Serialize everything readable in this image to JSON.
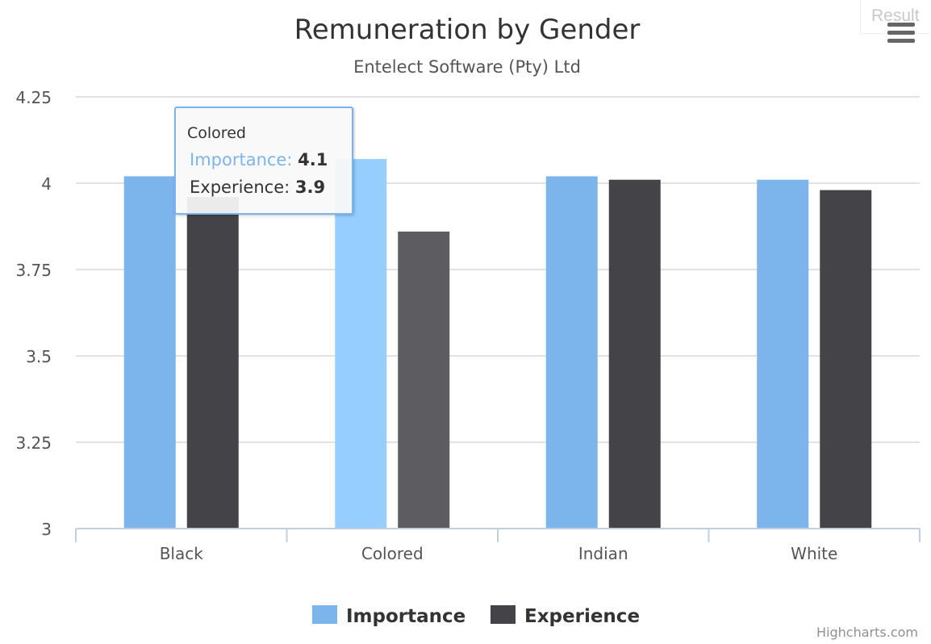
{
  "chart_data": {
    "type": "bar",
    "title": "Remuneration by Gender",
    "subtitle": "Entelect Software (Pty) Ltd",
    "categories": [
      "Black",
      "Colored",
      "Indian",
      "White"
    ],
    "series": [
      {
        "name": "Importance",
        "color": "#7cb5ec",
        "hover_color": "#95ceff",
        "values": [
          4.02,
          4.07,
          4.02,
          4.01
        ]
      },
      {
        "name": "Experience",
        "color": "#434348",
        "hover_color": "#5c5c61",
        "values": [
          3.96,
          3.86,
          4.01,
          3.98
        ]
      }
    ],
    "y_ticks": [
      "3",
      "3.25",
      "3.5",
      "3.75",
      "4",
      "4.25"
    ],
    "ylim": [
      3,
      4.25
    ],
    "grid": true,
    "legend_position": "bottom-center",
    "highlighted_category_index": 1
  },
  "tooltip": {
    "header": "Colored",
    "rows": [
      {
        "name": "Importance",
        "sep": ":",
        "value": "4.1"
      },
      {
        "name": "Experience",
        "sep": ":",
        "value": "3.9"
      }
    ]
  },
  "ui": {
    "result_label": "Result",
    "credits": "Highcharts.com",
    "menu_icon": "hamburger-menu-icon"
  }
}
